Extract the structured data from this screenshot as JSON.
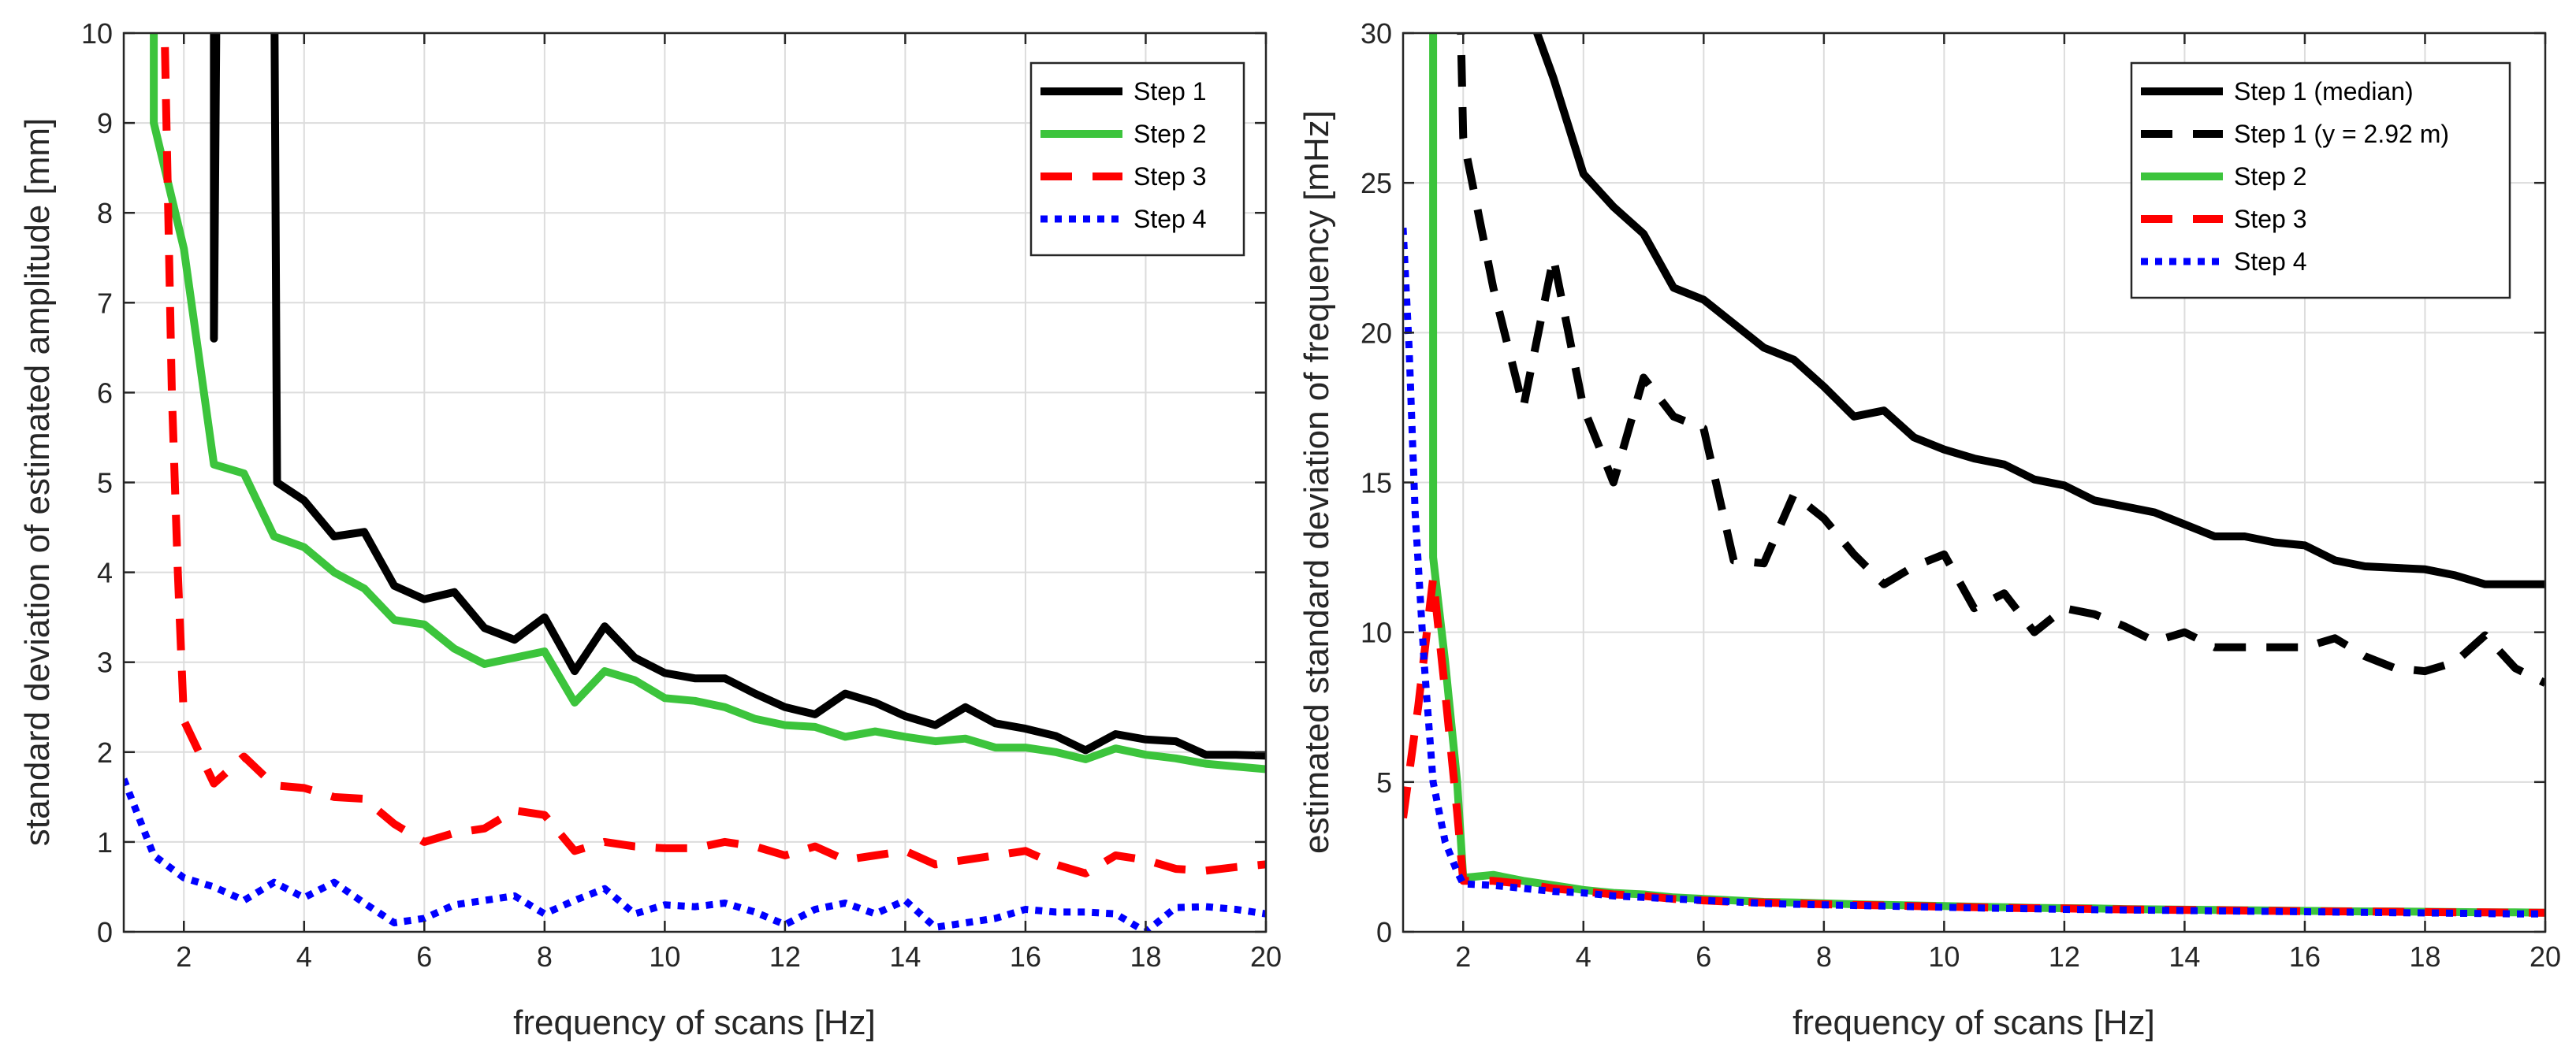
{
  "chart_data": [
    {
      "type": "line",
      "xlabel": "frequency of scans [Hz]",
      "ylabel": "standard deviation of estimated amplitude [mm]",
      "xlim": [
        1,
        20
      ],
      "ylim": [
        0,
        10
      ],
      "xticks": [
        2,
        4,
        6,
        8,
        10,
        12,
        14,
        16,
        18,
        20
      ],
      "yticks": [
        0,
        1,
        2,
        3,
        4,
        5,
        6,
        7,
        8,
        9,
        10
      ],
      "grid": true,
      "legend_position": "top-right",
      "series": [
        {
          "name": "Step 1",
          "color": "#000000",
          "style": "solid",
          "x": [
            2.5,
            2.5,
            2.55,
            3.5,
            3.55,
            4,
            4.5,
            5,
            5.5,
            6,
            6.5,
            7,
            7.5,
            8,
            8.5,
            9,
            9.5,
            10,
            10.5,
            11,
            11.5,
            12,
            12.5,
            13,
            13.5,
            14,
            14.5,
            15,
            15.5,
            16,
            16.5,
            17,
            17.5,
            18,
            18.5,
            19,
            19.5,
            20
          ],
          "y": [
            11,
            6.6,
            11,
            11,
            5.0,
            4.8,
            4.4,
            4.45,
            3.85,
            3.7,
            3.78,
            3.38,
            3.25,
            3.5,
            2.9,
            3.4,
            3.05,
            2.88,
            2.82,
            2.82,
            2.65,
            2.5,
            2.42,
            2.65,
            2.55,
            2.4,
            2.3,
            2.5,
            2.32,
            2.26,
            2.18,
            2.02,
            2.2,
            2.14,
            2.12,
            1.97,
            1.97,
            1.96
          ]
        },
        {
          "name": "Step 2",
          "color": "#3cc43c",
          "style": "solid",
          "x": [
            1.5,
            1.5,
            2,
            2.5,
            3,
            3.5,
            4,
            4.5,
            5,
            5.5,
            6,
            6.5,
            7,
            7.5,
            8,
            8.5,
            9,
            9.5,
            10,
            10.5,
            11,
            11.5,
            12,
            12.5,
            13,
            13.5,
            14,
            14.5,
            15,
            15.5,
            16,
            16.5,
            17,
            17.5,
            18,
            18.5,
            19,
            19.5,
            20
          ],
          "y": [
            11,
            9.0,
            7.6,
            5.2,
            5.1,
            4.4,
            4.28,
            4.0,
            3.82,
            3.47,
            3.42,
            3.15,
            2.98,
            3.05,
            3.12,
            2.55,
            2.9,
            2.8,
            2.6,
            2.57,
            2.5,
            2.37,
            2.3,
            2.28,
            2.17,
            2.23,
            2.17,
            2.12,
            2.15,
            2.05,
            2.05,
            2.0,
            1.92,
            2.04,
            1.97,
            1.93,
            1.87,
            1.84,
            1.81
          ]
        },
        {
          "name": "Step 3",
          "color": "#ff0000",
          "style": "dashed",
          "x": [
            1.65,
            1.8,
            1.9,
            2,
            2.5,
            3,
            3.5,
            4,
            4.5,
            5,
            5.5,
            6,
            6.5,
            7,
            7.5,
            8,
            8.5,
            9,
            9.5,
            10,
            10.5,
            11,
            11.5,
            12,
            12.5,
            13,
            13.5,
            14,
            14.5,
            15,
            15.5,
            16,
            16.5,
            17,
            17.5,
            18,
            18.5,
            19,
            19.5,
            20
          ],
          "y": [
            11,
            6.0,
            4.0,
            2.35,
            1.65,
            1.95,
            1.63,
            1.6,
            1.5,
            1.48,
            1.2,
            1.0,
            1.1,
            1.15,
            1.35,
            1.3,
            0.9,
            1.0,
            0.95,
            0.93,
            0.93,
            1.0,
            0.95,
            0.85,
            0.95,
            0.8,
            0.85,
            0.9,
            0.75,
            0.8,
            0.85,
            0.9,
            0.75,
            0.65,
            0.85,
            0.8,
            0.7,
            0.68,
            0.72,
            0.75
          ]
        },
        {
          "name": "Step 4",
          "color": "#0000ff",
          "style": "dotted",
          "x": [
            1,
            1.5,
            2,
            2.5,
            3,
            3.5,
            4,
            4.5,
            5,
            5.5,
            6,
            6.5,
            7,
            7.5,
            8,
            8.5,
            9,
            9.5,
            10,
            10.5,
            11,
            11.5,
            12,
            12.5,
            13,
            13.5,
            14,
            14.5,
            15,
            15.5,
            16,
            16.5,
            17,
            17.5,
            18,
            18.5,
            19,
            19.5,
            20
          ],
          "y": [
            1.7,
            0.85,
            0.6,
            0.5,
            0.35,
            0.55,
            0.38,
            0.55,
            0.32,
            0.1,
            0.15,
            0.3,
            0.35,
            0.4,
            0.2,
            0.35,
            0.48,
            0.2,
            0.3,
            0.28,
            0.32,
            0.22,
            0.08,
            0.25,
            0.32,
            0.2,
            0.35,
            0.05,
            0.1,
            0.15,
            0.25,
            0.22,
            0.22,
            0.2,
            0.0,
            0.27,
            0.28,
            0.25,
            0.2
          ]
        }
      ]
    },
    {
      "type": "line",
      "xlabel": "frequency of scans [Hz]",
      "ylabel": "estimated standard deviation of frequency [mHz]",
      "xlim": [
        1,
        20
      ],
      "ylim": [
        0,
        30
      ],
      "xticks": [
        2,
        4,
        6,
        8,
        10,
        12,
        14,
        16,
        18,
        20
      ],
      "yticks": [
        0,
        5,
        10,
        15,
        20,
        25,
        30
      ],
      "grid": true,
      "legend_position": "top-right",
      "series": [
        {
          "name": "Step 1 (median)",
          "color": "#000000",
          "style": "solid",
          "x": [
            3.05,
            3.5,
            4,
            4.5,
            5,
            5.5,
            6,
            6.5,
            7,
            7.5,
            8,
            8.5,
            9,
            9.5,
            10,
            10.5,
            11,
            11.5,
            12,
            12.5,
            13,
            13.5,
            14,
            14.5,
            15,
            15.5,
            16,
            16.5,
            17,
            17.5,
            18,
            18.5,
            19,
            19.5,
            20
          ],
          "y": [
            31,
            28.5,
            25.3,
            24.2,
            23.3,
            21.5,
            21.1,
            20.3,
            19.5,
            19.1,
            18.2,
            17.2,
            17.4,
            16.5,
            16.1,
            15.8,
            15.6,
            15.1,
            14.9,
            14.4,
            14.2,
            14.0,
            13.6,
            13.2,
            13.2,
            13.0,
            12.9,
            12.4,
            12.2,
            12.15,
            12.1,
            11.9,
            11.6,
            11.6,
            11.6
          ]
        },
        {
          "name": "Step 1 (y = 2.92 m)",
          "color": "#000000",
          "style": "dashed",
          "x": [
            1.95,
            2.0,
            2.5,
            3.0,
            3.5,
            4,
            4.5,
            5,
            5.5,
            6,
            6.5,
            7,
            7.5,
            8,
            8.5,
            9,
            9.5,
            10,
            10.5,
            11,
            11.5,
            12,
            12.5,
            13,
            13.5,
            14,
            14.5,
            15,
            15.5,
            16,
            16.5,
            17,
            17.5,
            18,
            18.5,
            19,
            19.5,
            20
          ],
          "y": [
            31,
            26.5,
            21.5,
            17.5,
            22.5,
            17.5,
            15.0,
            18.5,
            17.2,
            16.8,
            12.4,
            12.3,
            14.6,
            13.8,
            12.6,
            11.6,
            12.2,
            12.6,
            10.8,
            11.3,
            10.0,
            10.8,
            10.6,
            10.2,
            9.7,
            10.0,
            9.5,
            9.5,
            9.5,
            9.5,
            9.8,
            9.2,
            8.8,
            8.7,
            9.0,
            9.9,
            8.8,
            8.3
          ]
        },
        {
          "name": "Step 2",
          "color": "#3cc43c",
          "style": "solid",
          "x": [
            1.5,
            1.5,
            1.7,
            1.9,
            2.0,
            2.5,
            3,
            3.5,
            4,
            4.5,
            5,
            5.5,
            6,
            6.5,
            7,
            7.5,
            8,
            8.5,
            9,
            9.5,
            10,
            10.5,
            11,
            11.5,
            12,
            12.5,
            13,
            13.5,
            14,
            14.5,
            15,
            15.5,
            16,
            16.5,
            17,
            17.5,
            18,
            18.5,
            19,
            19.5,
            20
          ],
          "y": [
            31,
            12.5,
            9.0,
            5.0,
            1.8,
            1.9,
            1.7,
            1.55,
            1.4,
            1.3,
            1.25,
            1.15,
            1.1,
            1.05,
            1.0,
            0.98,
            0.95,
            0.92,
            0.9,
            0.88,
            0.86,
            0.84,
            0.82,
            0.8,
            0.79,
            0.78,
            0.76,
            0.75,
            0.74,
            0.73,
            0.72,
            0.71,
            0.7,
            0.69,
            0.68,
            0.68,
            0.67,
            0.66,
            0.65,
            0.65,
            0.64
          ]
        },
        {
          "name": "Step 3",
          "color": "#ff0000",
          "style": "dashed",
          "x": [
            1.0,
            1.25,
            1.5,
            1.7,
            1.9,
            2.0,
            2.5,
            3,
            3.5,
            4,
            4.5,
            5,
            5.5,
            6,
            6.5,
            7,
            7.5,
            8,
            8.5,
            9,
            9.5,
            10,
            10.5,
            11,
            11.5,
            12,
            12.5,
            13,
            13.5,
            14,
            14.5,
            15,
            15.5,
            16,
            16.5,
            17,
            17.5,
            18,
            18.5,
            19,
            19.5,
            20
          ],
          "y": [
            3.8,
            7.5,
            11.8,
            8.0,
            4.0,
            1.7,
            1.7,
            1.6,
            1.45,
            1.35,
            1.25,
            1.2,
            1.1,
            1.05,
            1.0,
            0.98,
            0.95,
            0.92,
            0.9,
            0.88,
            0.86,
            0.84,
            0.82,
            0.8,
            0.79,
            0.78,
            0.76,
            0.75,
            0.74,
            0.73,
            0.72,
            0.71,
            0.7,
            0.69,
            0.68,
            0.68,
            0.67,
            0.66,
            0.65,
            0.65,
            0.64,
            0.64
          ]
        },
        {
          "name": "Step 4",
          "color": "#0000ff",
          "style": "dotted",
          "x": [
            1.0,
            1.1,
            1.2,
            1.35,
            1.5,
            1.7,
            1.9,
            2.0,
            2.5,
            3,
            3.5,
            4,
            4.5,
            5,
            5.5,
            6,
            6.5,
            7,
            7.5,
            8,
            8.5,
            9,
            9.5,
            10,
            10.5,
            11,
            11.5,
            12,
            12.5,
            13,
            13.5,
            14,
            14.5,
            15,
            15.5,
            16,
            16.5,
            17,
            17.5,
            18,
            18.5,
            19,
            19.5,
            20
          ],
          "y": [
            23.5,
            19.5,
            14.0,
            9.0,
            5.0,
            3.0,
            2.0,
            1.6,
            1.55,
            1.45,
            1.35,
            1.3,
            1.2,
            1.15,
            1.1,
            1.05,
            1.0,
            0.95,
            0.92,
            0.9,
            0.88,
            0.86,
            0.84,
            0.82,
            0.8,
            0.78,
            0.77,
            0.75,
            0.74,
            0.73,
            0.72,
            0.71,
            0.7,
            0.69,
            0.68,
            0.67,
            0.66,
            0.65,
            0.64,
            0.63,
            0.62,
            0.61,
            0.6,
            0.6
          ]
        }
      ]
    }
  ]
}
